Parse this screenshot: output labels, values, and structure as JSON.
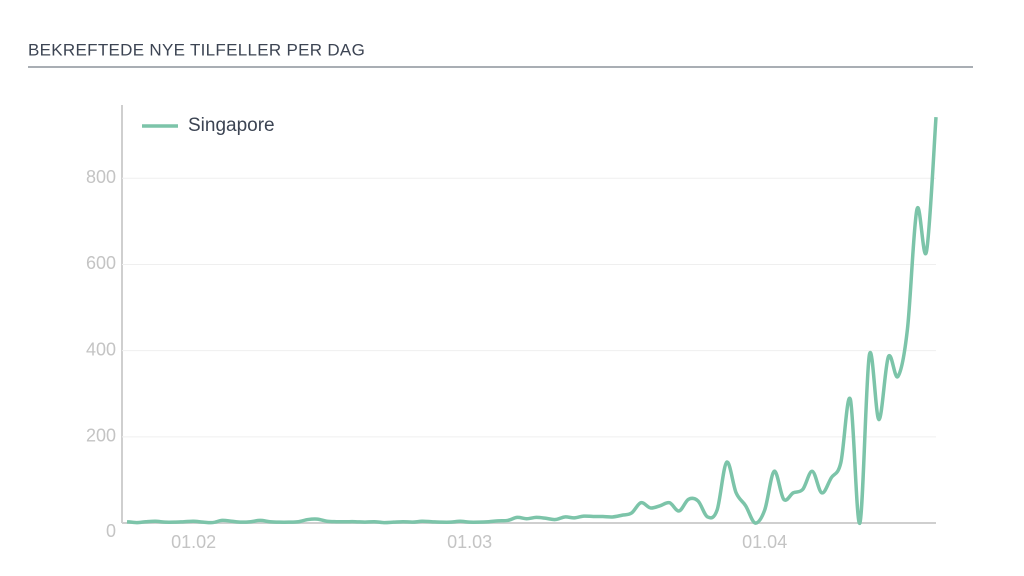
{
  "chart_data": {
    "type": "line",
    "title": "BEKREFTEDE NYE TILFELLER PER DAG",
    "categories": [
      null,
      null,
      null,
      null,
      null,
      null,
      null,
      "01.02",
      null,
      null,
      null,
      null,
      null,
      null,
      null,
      null,
      null,
      null,
      null,
      null,
      null,
      null,
      null,
      null,
      null,
      null,
      null,
      null,
      null,
      null,
      null,
      null,
      null,
      null,
      null,
      null,
      "01.03",
      null,
      null,
      null,
      null,
      null,
      null,
      null,
      null,
      null,
      null,
      null,
      null,
      null,
      null,
      null,
      null,
      null,
      null,
      null,
      null,
      null,
      null,
      null,
      null,
      null,
      null,
      null,
      null,
      null,
      null,
      "01.04",
      null,
      null,
      null,
      null,
      null,
      null,
      null,
      null,
      null,
      null,
      null,
      null,
      null,
      null,
      null,
      null,
      null,
      null
    ],
    "series": [
      {
        "name": "Singapore",
        "color": "#7cc4a9",
        "values": [
          3,
          1,
          3,
          4,
          2,
          2,
          3,
          4,
          2,
          1,
          6,
          4,
          2,
          3,
          6,
          3,
          2,
          2,
          3,
          8,
          9,
          4,
          3,
          3,
          3,
          2,
          3,
          1,
          2,
          3,
          2,
          4,
          3,
          2,
          2,
          4,
          2,
          2,
          3,
          5,
          6,
          13,
          10,
          13,
          11,
          8,
          14,
          12,
          16,
          15,
          15,
          14,
          18,
          23,
          47,
          35,
          40,
          47,
          28,
          55,
          51,
          14,
          30,
          141,
          70,
          40,
          0,
          30,
          120,
          55,
          70,
          78,
          120,
          70,
          105,
          140,
          287,
          0,
          390,
          240,
          386,
          340,
          450,
          728,
          630,
          942
        ]
      }
    ],
    "ylim": [
      0,
      970
    ],
    "yticks": [
      0,
      200,
      400,
      600,
      800
    ],
    "grid": true
  }
}
